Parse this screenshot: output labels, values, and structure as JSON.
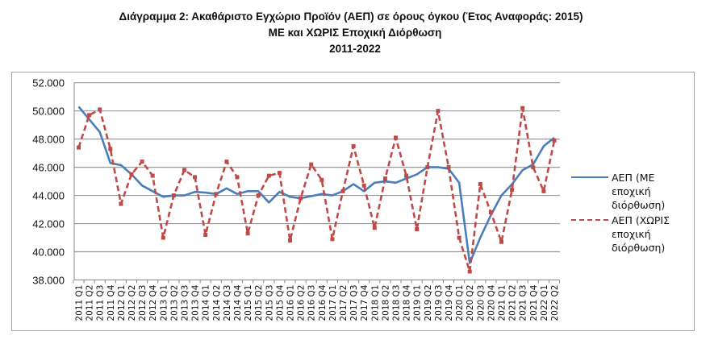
{
  "title": {
    "line1": "Διάγραμμα 2: Ακαθάριστο Εγχώριο Προϊόν (ΑΕΠ) σε όρους όγκου (Έτος Αναφοράς: 2015)",
    "line2": "ΜΕ και ΧΩΡΙΣ Εποχική Διόρθωση",
    "line3": "2011-2022"
  },
  "legend": {
    "position": "right",
    "items": [
      {
        "lines": [
          "ΑΕΠ (ΜΕ",
          "εποχική",
          "διόρθωση)"
        ],
        "style": "solid",
        "color": "#4a7ebb"
      },
      {
        "lines": [
          "ΑΕΠ (ΧΩΡΙΣ",
          "εποχική",
          "διόρθωση)"
        ],
        "style": "dashed",
        "color": "#be4b48"
      }
    ]
  },
  "chart_data": {
    "type": "line",
    "title": "Διάγραμμα 2: Ακαθάριστο Εγχώριο Προϊόν (ΑΕΠ) σε όρους όγκου (Έτος Αναφοράς: 2015) ΜΕ και ΧΩΡΙΣ Εποχική Διόρθωση 2011-2022",
    "xlabel": "",
    "ylabel": "",
    "ylim": [
      38000,
      52000
    ],
    "yticks": [
      38000,
      40000,
      42000,
      44000,
      46000,
      48000,
      50000,
      52000
    ],
    "ytick_labels": [
      "38.000",
      "40.000",
      "42.000",
      "44.000",
      "46.000",
      "48.000",
      "50.000",
      "52.000"
    ],
    "grid": true,
    "legend_position": "right",
    "categories": [
      "2011 Q1",
      "2011 Q2",
      "2011 Q3",
      "2011 Q4",
      "2012 Q1",
      "2012 Q2",
      "2012 Q3",
      "2012 Q4",
      "2013 Q1",
      "2013 Q2",
      "2013 Q3",
      "2013 Q4",
      "2014 Q1",
      "2014 Q2",
      "2014 Q3",
      "2014 Q4",
      "2015 Q1",
      "2015 Q2",
      "2015 Q3",
      "2015 Q4",
      "2016 Q1",
      "2016 Q2",
      "2016 Q3",
      "2016 Q4",
      "2017 Q1",
      "2017 Q2",
      "2017 Q3",
      "2017 Q4",
      "2018 Q1",
      "2018 Q2",
      "2018 Q3",
      "2018 Q4",
      "2019 Q1",
      "2019 Q2",
      "2019 Q3",
      "2019 Q4",
      "2020 Q1",
      "2020 Q2",
      "2020 Q3",
      "2020 Q4",
      "2021 Q1",
      "2021 Q2",
      "2021 Q3",
      "2021 Q4",
      "2022 Q1",
      "2022 Q2"
    ],
    "series": [
      {
        "name": "ΑΕΠ (ΜΕ εποχική διόρθωση)",
        "color": "#4a7ebb",
        "style": "solid",
        "values": [
          50300,
          49400,
          48500,
          46300,
          46150,
          45500,
          44700,
          44300,
          43900,
          44000,
          44000,
          44250,
          44200,
          44100,
          44500,
          44100,
          44300,
          44300,
          43500,
          44250,
          43900,
          43800,
          43950,
          44100,
          44000,
          44300,
          44800,
          44300,
          44900,
          45000,
          44900,
          45200,
          45500,
          46000,
          46000,
          45900,
          44900,
          39200,
          41000,
          42600,
          44000,
          44800,
          45800,
          46200,
          47500,
          48100
        ]
      },
      {
        "name": "ΑΕΠ (ΧΩΡΙΣ εποχική διόρθωση)",
        "color": "#be4b48",
        "style": "dashed",
        "values": [
          47400,
          49700,
          50100,
          47300,
          43400,
          45500,
          46400,
          45400,
          41000,
          44000,
          45800,
          45300,
          41200,
          44100,
          46400,
          45300,
          41300,
          44000,
          45400,
          45600,
          40800,
          43800,
          46200,
          45100,
          40900,
          44300,
          47500,
          44700,
          41700,
          45200,
          48100,
          45400,
          41600,
          46000,
          50000,
          46000,
          41000,
          38600,
          44800,
          42800,
          40700,
          44400,
          50200,
          46000,
          44300,
          47900
        ]
      }
    ]
  }
}
